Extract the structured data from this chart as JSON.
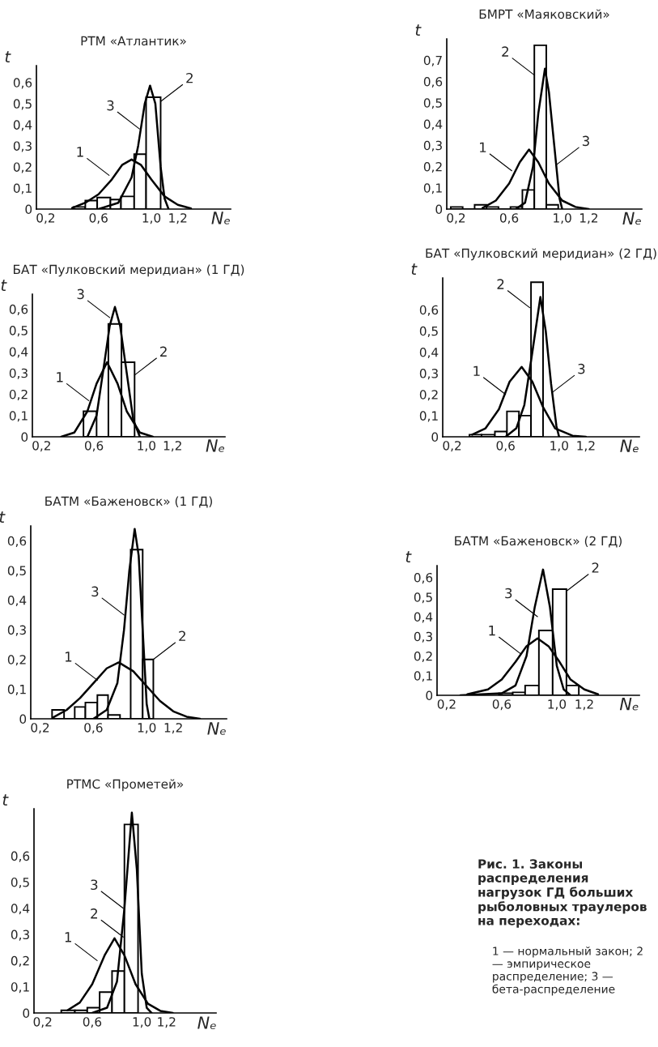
{
  "chart_data": [
    {
      "type": "histogram",
      "title": "РТМ «Атлантик»",
      "xlabel": "Nₑ",
      "ylabel": "t",
      "xlim": [
        0.13,
        1.6
      ],
      "ylim": [
        0,
        0.68
      ],
      "xticks": [
        {
          "value": 0.2,
          "label": "0,2"
        },
        {
          "value": 0.6,
          "label": "0,6"
        },
        {
          "value": 1.0,
          "label": "1,0"
        },
        {
          "value": 1.2,
          "label": "1,2"
        }
      ],
      "yticks": [
        0,
        {
          "value": 0.1,
          "label": "0,1"
        },
        {
          "value": 0.2,
          "label": "0,2"
        },
        {
          "value": 0.3,
          "label": "0,3"
        },
        {
          "value": 0.4,
          "label": "0,4"
        },
        {
          "value": 0.5,
          "label": "0,5"
        },
        {
          "value": 0.6,
          "label": "0,6"
        }
      ],
      "bins": [
        0.41,
        0.5,
        0.59,
        0.69,
        0.77,
        0.87,
        0.96,
        1.07
      ],
      "values": [
        0.01,
        0.04,
        0.055,
        0.045,
        0.06,
        0.26,
        0.53
      ],
      "color": "#000000",
      "series": [
        {
          "type": "line",
          "color": "#000000",
          "x": [
            0.4,
            0.5,
            0.6,
            0.7,
            0.78,
            0.85,
            0.92,
            1.0,
            1.1,
            1.2,
            1.3
          ],
          "values": [
            0.005,
            0.03,
            0.07,
            0.14,
            0.21,
            0.235,
            0.21,
            0.14,
            0.06,
            0.02,
            0.003
          ]
        },
        {
          "type": "line",
          "color": "#000000",
          "x": [
            0.6,
            0.75,
            0.85,
            0.9,
            0.95,
            0.99,
            1.03,
            1.07,
            1.1,
            1.13
          ],
          "values": [
            0,
            0.03,
            0.15,
            0.3,
            0.5,
            0.585,
            0.5,
            0.2,
            0.05,
            0
          ]
        }
      ],
      "annotations": [
        {
          "text": "1",
          "x": 0.68,
          "y": 0.16
        },
        {
          "text": "3",
          "x": 0.91,
          "y": 0.38
        },
        {
          "text": "2",
          "x": 1.07,
          "y": 0.51
        }
      ]
    },
    {
      "type": "histogram",
      "title": "БМРТ «Маяковский»",
      "xlabel": "Nₑ",
      "ylabel": "t",
      "xlim": [
        0.13,
        1.6
      ],
      "ylim": [
        0,
        0.8
      ],
      "xticks": [
        {
          "value": 0.2,
          "label": "0,2"
        },
        {
          "value": 0.6,
          "label": "0,6"
        },
        {
          "value": 1.0,
          "label": "1,0"
        },
        {
          "value": 1.2,
          "label": "1,2"
        }
      ],
      "yticks": [
        0,
        {
          "value": 0.1,
          "label": "0,1"
        },
        {
          "value": 0.2,
          "label": "0,2"
        },
        {
          "value": 0.3,
          "label": "0,3"
        },
        {
          "value": 0.4,
          "label": "0,4"
        },
        {
          "value": 0.5,
          "label": "0,5"
        },
        {
          "value": 0.6,
          "label": "0,6"
        },
        {
          "value": 0.7,
          "label": "0,7"
        }
      ],
      "bins": [
        0.16,
        0.25,
        0.34,
        0.43,
        0.52,
        0.61,
        0.7,
        0.79,
        0.88,
        0.97
      ],
      "values": [
        0.01,
        0,
        0.02,
        0.01,
        0,
        0.01,
        0.09,
        0.77,
        0.02
      ],
      "color": "#000000",
      "series": [
        {
          "type": "line",
          "color": "#000000",
          "x": [
            0.4,
            0.5,
            0.6,
            0.68,
            0.75,
            0.82,
            0.9,
            1.0,
            1.1,
            1.2
          ],
          "values": [
            0.005,
            0.04,
            0.12,
            0.22,
            0.28,
            0.22,
            0.12,
            0.04,
            0.01,
            0
          ]
        },
        {
          "type": "line",
          "color": "#000000",
          "x": [
            0.65,
            0.72,
            0.78,
            0.82,
            0.87,
            0.9,
            0.94,
            0.98,
            1.0
          ],
          "values": [
            0,
            0.03,
            0.2,
            0.45,
            0.66,
            0.55,
            0.3,
            0.05,
            0
          ]
        }
      ],
      "annotations": [
        {
          "text": "2",
          "x": 0.79,
          "y": 0.63
        },
        {
          "text": "1",
          "x": 0.62,
          "y": 0.18
        },
        {
          "text": "3",
          "x": 0.96,
          "y": 0.21
        }
      ]
    },
    {
      "type": "histogram",
      "title": "БАТ «Пулковский меридиан» (1 ГД)",
      "xlabel": "Nₑ",
      "ylabel": "t",
      "xlim": [
        0.13,
        1.6
      ],
      "ylim": [
        0,
        0.67
      ],
      "xticks": [
        {
          "value": 0.2,
          "label": "0,2"
        },
        {
          "value": 0.6,
          "label": "0,6"
        },
        {
          "value": 1.0,
          "label": "1,0"
        },
        {
          "value": 1.2,
          "label": "1,2"
        }
      ],
      "yticks": [
        0,
        {
          "value": 0.1,
          "label": "0,1"
        },
        {
          "value": 0.2,
          "label": "0,2"
        },
        {
          "value": 0.3,
          "label": "0,3"
        },
        {
          "value": 0.4,
          "label": "0,4"
        },
        {
          "value": 0.5,
          "label": "0,5"
        },
        {
          "value": 0.6,
          "label": "0,6"
        }
      ],
      "bins": [
        0.52,
        0.62,
        0.71,
        0.81,
        0.91
      ],
      "values": [
        0.12,
        0,
        0.53,
        0.35
      ],
      "color": "#000000",
      "series": [
        {
          "type": "line",
          "color": "#000000",
          "x": [
            0.35,
            0.45,
            0.55,
            0.62,
            0.7,
            0.78,
            0.85,
            0.95,
            1.05
          ],
          "values": [
            0,
            0.02,
            0.12,
            0.25,
            0.35,
            0.25,
            0.12,
            0.02,
            0
          ]
        },
        {
          "type": "line",
          "color": "#000000",
          "x": [
            0.55,
            0.62,
            0.68,
            0.72,
            0.76,
            0.8,
            0.85,
            0.9,
            0.95
          ],
          "values": [
            0,
            0.1,
            0.35,
            0.52,
            0.61,
            0.52,
            0.3,
            0.08,
            0
          ]
        }
      ],
      "annotations": [
        {
          "text": "3",
          "x": 0.72,
          "y": 0.56
        },
        {
          "text": "1",
          "x": 0.56,
          "y": 0.17
        },
        {
          "text": "2",
          "x": 0.91,
          "y": 0.29
        }
      ]
    },
    {
      "type": "histogram",
      "title": "БАТ «Пулковский меридиан» (2 ГД)",
      "xlabel": "Nₑ",
      "ylabel": "t",
      "xlim": [
        0.13,
        1.6
      ],
      "ylim": [
        0,
        0.75
      ],
      "xticks": [
        {
          "value": 0.2,
          "label": "0,2"
        },
        {
          "value": 0.6,
          "label": "0,6"
        },
        {
          "value": 1.0,
          "label": "1,0"
        },
        {
          "value": 1.2,
          "label": "1,2"
        }
      ],
      "yticks": [
        0,
        {
          "value": 0.1,
          "label": "0,1"
        },
        {
          "value": 0.2,
          "label": "0,2"
        },
        {
          "value": 0.3,
          "label": "0,3"
        },
        {
          "value": 0.4,
          "label": "0,4"
        },
        {
          "value": 0.5,
          "label": "0,5"
        },
        {
          "value": 0.6,
          "label": "0,6"
        }
      ],
      "bins": [
        0.33,
        0.42,
        0.52,
        0.61,
        0.7,
        0.79,
        0.88
      ],
      "values": [
        0.01,
        0.01,
        0.025,
        0.12,
        0.1,
        0.73
      ],
      "color": "#000000",
      "series": [
        {
          "type": "line",
          "color": "#000000",
          "x": [
            0.35,
            0.45,
            0.55,
            0.63,
            0.72,
            0.8,
            0.88,
            0.97,
            1.1,
            1.2
          ],
          "values": [
            0.01,
            0.04,
            0.13,
            0.26,
            0.33,
            0.26,
            0.14,
            0.04,
            0.005,
            0
          ]
        },
        {
          "type": "line",
          "color": "#000000",
          "x": [
            0.6,
            0.68,
            0.74,
            0.8,
            0.86,
            0.9,
            0.94,
            0.98,
            1.0
          ],
          "values": [
            0,
            0.04,
            0.15,
            0.4,
            0.66,
            0.5,
            0.25,
            0.05,
            0
          ]
        }
      ],
      "annotations": [
        {
          "text": "2",
          "x": 0.78,
          "y": 0.61
        },
        {
          "text": "1",
          "x": 0.6,
          "y": 0.2
        },
        {
          "text": "3",
          "x": 0.95,
          "y": 0.21
        }
      ]
    },
    {
      "type": "histogram",
      "title": "БАТМ «Баженовск» (1 ГД)",
      "xlabel": "Nₑ",
      "ylabel": "t",
      "xlim": [
        0.13,
        1.6
      ],
      "ylim": [
        0,
        0.65
      ],
      "xticks": [
        {
          "value": 0.2,
          "label": "0,2"
        },
        {
          "value": 0.6,
          "label": "0,6"
        },
        {
          "value": 1.0,
          "label": "1,0"
        },
        {
          "value": 1.2,
          "label": "1,2"
        }
      ],
      "yticks": [
        0,
        {
          "value": 0.1,
          "label": "0,1"
        },
        {
          "value": 0.2,
          "label": "0,2"
        },
        {
          "value": 0.3,
          "label": "0,3"
        },
        {
          "value": 0.4,
          "label": "0,4"
        },
        {
          "value": 0.5,
          "label": "0,5"
        },
        {
          "value": 0.6,
          "label": "0,6"
        }
      ],
      "bins": [
        0.29,
        0.38,
        0.46,
        0.54,
        0.63,
        0.71,
        0.8,
        0.88,
        0.97,
        1.05
      ],
      "values": [
        0.03,
        0,
        0.04,
        0.055,
        0.08,
        0.013,
        0,
        0.57,
        0.2
      ],
      "color": "#000000",
      "series": [
        {
          "type": "line",
          "color": "#000000",
          "x": [
            0.3,
            0.4,
            0.5,
            0.6,
            0.7,
            0.79,
            0.9,
            1.0,
            1.1,
            1.2,
            1.3,
            1.4
          ],
          "values": [
            0.005,
            0.03,
            0.07,
            0.12,
            0.17,
            0.19,
            0.16,
            0.11,
            0.06,
            0.025,
            0.007,
            0
          ]
        },
        {
          "type": "line",
          "color": "#000000",
          "x": [
            0.6,
            0.7,
            0.78,
            0.83,
            0.87,
            0.91,
            0.94,
            0.97,
            1.0,
            1.02
          ],
          "values": [
            0,
            0.03,
            0.12,
            0.3,
            0.5,
            0.64,
            0.55,
            0.3,
            0.05,
            0
          ]
        }
      ],
      "annotations": [
        {
          "text": "3",
          "x": 0.83,
          "y": 0.35
        },
        {
          "text": "1",
          "x": 0.63,
          "y": 0.13
        },
        {
          "text": "2",
          "x": 1.05,
          "y": 0.2
        }
      ]
    },
    {
      "type": "histogram",
      "title": "БАТМ «Баженовск» (2 ГД)",
      "xlabel": "Nₑ",
      "ylabel": "t",
      "xlim": [
        0.13,
        1.6
      ],
      "ylim": [
        0,
        0.66
      ],
      "xticks": [
        {
          "value": 0.2,
          "label": "0,2"
        },
        {
          "value": 0.6,
          "label": "0,6"
        },
        {
          "value": 1.0,
          "label": "1,0"
        },
        {
          "value": 1.2,
          "label": "1,2"
        }
      ],
      "yticks": [
        0,
        {
          "value": 0.1,
          "label": "0,1"
        },
        {
          "value": 0.2,
          "label": "0,2"
        },
        {
          "value": 0.3,
          "label": "0,3"
        },
        {
          "value": 0.4,
          "label": "0,4"
        },
        {
          "value": 0.5,
          "label": "0,5"
        },
        {
          "value": 0.6,
          "label": "0,6"
        }
      ],
      "bins": [
        0.58,
        0.68,
        0.77,
        0.87,
        0.97,
        1.07,
        1.16
      ],
      "values": [
        0.01,
        0.015,
        0.05,
        0.33,
        0.54,
        0.05
      ],
      "color": "#000000",
      "series": [
        {
          "type": "line",
          "color": "#000000",
          "x": [
            0.35,
            0.5,
            0.6,
            0.7,
            0.78,
            0.86,
            0.94,
            1.02,
            1.1,
            1.2,
            1.3
          ],
          "values": [
            0.005,
            0.03,
            0.08,
            0.17,
            0.25,
            0.29,
            0.25,
            0.17,
            0.08,
            0.03,
            0.005
          ]
        },
        {
          "type": "line",
          "color": "#000000",
          "x": [
            0.3,
            0.6,
            0.7,
            0.78,
            0.84,
            0.9,
            0.95,
            1.0,
            1.05,
            1.1
          ],
          "values": [
            0,
            0.01,
            0.05,
            0.2,
            0.45,
            0.64,
            0.45,
            0.15,
            0.03,
            0
          ]
        }
      ],
      "annotations": [
        {
          "text": "3",
          "x": 0.86,
          "y": 0.4
        },
        {
          "text": "2",
          "x": 1.07,
          "y": 0.53
        },
        {
          "text": "1",
          "x": 0.74,
          "y": 0.21
        }
      ]
    },
    {
      "type": "histogram",
      "title": "РТМС «Прометей»",
      "xlabel": "Nₑ",
      "ylabel": "t",
      "xlim": [
        0.13,
        1.6
      ],
      "ylim": [
        0,
        0.78
      ],
      "xticks": [
        {
          "value": 0.2,
          "label": "0,2"
        },
        {
          "value": 0.6,
          "label": "0,6"
        },
        {
          "value": 1.0,
          "label": "1,0"
        },
        {
          "value": 1.2,
          "label": "1,2"
        }
      ],
      "yticks": [
        0,
        {
          "value": 0.1,
          "label": "0,1"
        },
        {
          "value": 0.2,
          "label": "0,2"
        },
        {
          "value": 0.3,
          "label": "0,3"
        },
        {
          "value": 0.4,
          "label": "0,4"
        },
        {
          "value": 0.5,
          "label": "0,5"
        },
        {
          "value": 0.6,
          "label": "0,6"
        }
      ],
      "bins": [
        0.35,
        0.46,
        0.56,
        0.66,
        0.76,
        0.86,
        0.97
      ],
      "values": [
        0.01,
        0.01,
        0.02,
        0.08,
        0.16,
        0.72
      ],
      "color": "#000000",
      "series": [
        {
          "type": "line",
          "color": "#000000",
          "x": [
            0.4,
            0.5,
            0.6,
            0.7,
            0.78,
            0.86,
            0.95,
            1.05,
            1.15,
            1.25
          ],
          "values": [
            0.01,
            0.04,
            0.11,
            0.22,
            0.285,
            0.22,
            0.11,
            0.035,
            0.008,
            0
          ]
        },
        {
          "type": "line",
          "color": "#000000",
          "x": [
            0.6,
            0.72,
            0.8,
            0.86,
            0.92,
            0.96,
            1.0,
            1.04,
            1.08
          ],
          "values": [
            0,
            0.02,
            0.12,
            0.4,
            0.765,
            0.55,
            0.15,
            0.02,
            0
          ]
        }
      ],
      "annotations": [
        {
          "text": "3",
          "x": 0.85,
          "y": 0.4
        },
        {
          "text": "2",
          "x": 0.85,
          "y": 0.29
        },
        {
          "text": "1",
          "x": 0.64,
          "y": 0.2
        }
      ]
    },
    {
      "type": "other",
      "title": "Рис. 1. Законы распределения нагрузок ГД больших рыболовных траулеров на переходах:",
      "annotations": [
        "1 — нормальный закон; 2 — эмпирическое распределение; 3 — бета-распределение"
      ]
    }
  ]
}
